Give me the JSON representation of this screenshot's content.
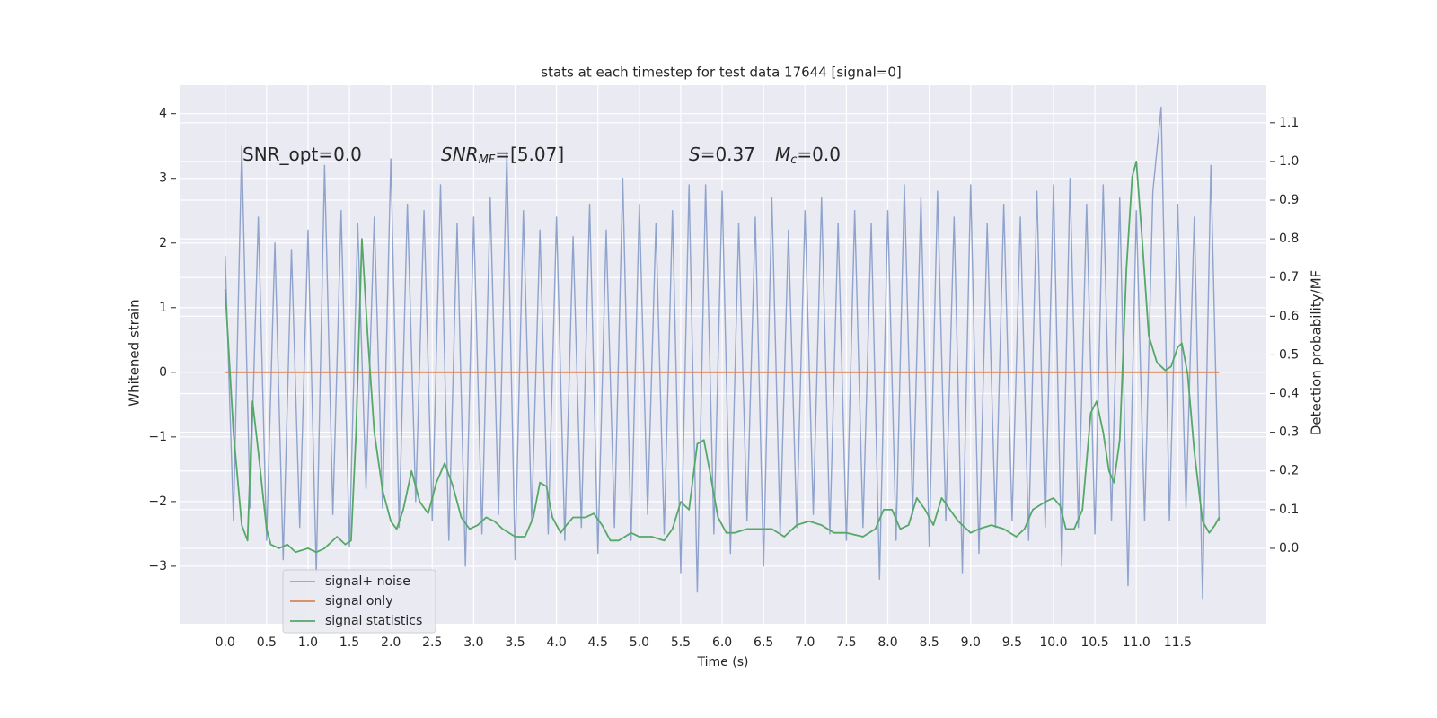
{
  "chart_data": {
    "type": "line",
    "title": "stats at each timestep for test data 17644 [signal=0]",
    "xlabel": "Time (s)",
    "ylabel": "Whitened strain",
    "y2label": "Detection probability/MF",
    "xlim": [
      -0.55,
      12.57
    ],
    "ylim": [
      -3.89,
      4.44
    ],
    "y2lim": [
      -0.195,
      1.197
    ],
    "xticks": [
      {
        "value": 0,
        "label": "0.0"
      },
      0.5,
      {
        "value": 1,
        "label": "1.0"
      },
      1.5,
      {
        "value": 2,
        "label": "2.0"
      },
      2.5,
      {
        "value": 3,
        "label": "3.0"
      },
      3.5,
      {
        "value": 4,
        "label": "4.0"
      },
      4.5,
      {
        "value": 5,
        "label": "5.0"
      },
      5.5,
      {
        "value": 6,
        "label": "6.0"
      },
      6.5,
      {
        "value": 7,
        "label": "7.0"
      },
      7.5,
      {
        "value": 8,
        "label": "8.0"
      },
      8.5,
      {
        "value": 9,
        "label": "9.0"
      },
      9.5,
      {
        "value": 10,
        "label": "10.0"
      },
      10.5,
      {
        "value": 11,
        "label": "11.0"
      },
      11.5
    ],
    "yticks": [
      {
        "value": -3,
        "label": "−3"
      },
      {
        "value": -2,
        "label": "−2"
      },
      {
        "value": -1,
        "label": "−1"
      },
      0,
      1,
      2,
      3,
      4
    ],
    "y2ticks": [
      {
        "value": 0,
        "label": "0.0"
      },
      0.1,
      0.2,
      0.3,
      0.4,
      0.5,
      0.6,
      0.7,
      0.8,
      0.9,
      {
        "value": 1,
        "label": "1.0"
      },
      1.1
    ],
    "grid": true,
    "legend_loc": "lower left",
    "annotations": [
      [
        {
          "text": "SNR_opt=0.0"
        }
      ],
      [
        {
          "text": "SNR",
          "italic": true
        },
        {
          "text": "MF",
          "italic": true,
          "subscript": true
        },
        {
          "text": "=[5.07]"
        }
      ],
      [
        {
          "text": "S",
          "italic": true
        },
        {
          "text": "=0.37"
        },
        {
          "text": "M",
          "italic": true,
          "spaced": true
        },
        {
          "text": "c",
          "italic": true,
          "subscript": true
        },
        {
          "text": "=0.0"
        }
      ]
    ],
    "series": [
      {
        "name": "signal+ noise",
        "color": "#8fa3cc",
        "x": [
          0,
          0.1,
          0.2,
          0.3,
          0.4,
          0.5,
          0.6,
          0.7,
          0.8,
          0.9,
          1,
          1.1,
          1.2,
          1.3,
          1.4,
          1.5,
          1.6,
          1.7,
          1.8,
          1.9,
          2,
          2.1,
          2.2,
          2.3,
          2.4,
          2.5,
          2.6,
          2.7,
          2.8,
          2.9,
          3,
          3.1,
          3.2,
          3.3,
          3.4,
          3.5,
          3.6,
          3.7,
          3.8,
          3.9,
          4,
          4.1,
          4.2,
          4.3,
          4.4,
          4.5,
          4.6,
          4.7,
          4.8,
          4.9,
          5,
          5.1,
          5.2,
          5.3,
          5.4,
          5.5,
          5.6,
          5.7,
          5.8,
          5.9,
          6,
          6.1,
          6.2,
          6.3,
          6.4,
          6.5,
          6.6,
          6.7,
          6.8,
          6.9,
          7,
          7.1,
          7.2,
          7.3,
          7.4,
          7.5,
          7.6,
          7.7,
          7.8,
          7.9,
          8,
          8.1,
          8.2,
          8.3,
          8.4,
          8.5,
          8.6,
          8.7,
          8.8,
          8.9,
          9,
          9.1,
          9.2,
          9.3,
          9.4,
          9.5,
          9.6,
          9.7,
          9.8,
          9.9,
          10,
          10.1,
          10.2,
          10.3,
          10.4,
          10.5,
          10.6,
          10.7,
          10.8,
          10.9,
          11,
          11.1,
          11.2,
          11.3,
          11.4,
          11.5,
          11.6,
          11.7,
          11.8,
          11.9,
          12
        ],
        "values": [
          1.8,
          -2.3,
          3.5,
          -2.1,
          2.4,
          -2.6,
          2.0,
          -2.9,
          1.9,
          -2.4,
          2.2,
          -3.1,
          3.2,
          -2.2,
          2.5,
          -2.7,
          2.3,
          -1.8,
          2.4,
          -2.1,
          3.3,
          -2.4,
          2.6,
          -2.0,
          2.5,
          -2.3,
          2.9,
          -2.6,
          2.3,
          -3.0,
          2.4,
          -2.5,
          2.7,
          -2.2,
          3.4,
          -2.9,
          2.5,
          -2.3,
          2.2,
          -2.5,
          2.4,
          -2.6,
          2.1,
          -2.4,
          2.6,
          -2.8,
          2.2,
          -2.4,
          3.0,
          -2.6,
          2.6,
          -2.2,
          2.3,
          -2.5,
          2.5,
          -3.1,
          2.9,
          -3.4,
          2.9,
          -2.5,
          2.8,
          -2.8,
          2.3,
          -2.3,
          2.4,
          -3.0,
          2.7,
          -2.5,
          2.2,
          -2.4,
          2.5,
          -2.2,
          2.7,
          -2.5,
          2.3,
          -2.6,
          2.5,
          -2.4,
          2.3,
          -3.2,
          2.5,
          -2.6,
          2.9,
          -2.2,
          2.7,
          -2.7,
          2.8,
          -2.3,
          2.4,
          -3.1,
          2.9,
          -2.8,
          2.3,
          -2.4,
          2.6,
          -2.3,
          2.4,
          -2.6,
          2.8,
          -2.4,
          2.9,
          -3.0,
          3.0,
          -2.4,
          2.6,
          -2.5,
          2.9,
          -2.3,
          2.7,
          -3.3,
          2.5,
          -2.3,
          2.8,
          4.1,
          -2.3,
          2.6,
          -2.1,
          2.4,
          -3.5,
          3.2,
          -2.3
        ]
      },
      {
        "name": "signal only",
        "color": "#dd8452",
        "x": [
          0,
          12
        ],
        "values": [
          0,
          0
        ]
      },
      {
        "name": "signal statistics",
        "color": "#55a868",
        "axis": "y2",
        "x": [
          0,
          0.1,
          0.2,
          0.27,
          0.33,
          0.4,
          0.5,
          0.55,
          0.65,
          0.75,
          0.85,
          1,
          1.1,
          1.2,
          1.35,
          1.45,
          1.52,
          1.58,
          1.65,
          1.72,
          1.8,
          1.9,
          2,
          2.07,
          2.15,
          2.25,
          2.35,
          2.45,
          2.55,
          2.65,
          2.75,
          2.85,
          2.95,
          3.05,
          3.15,
          3.25,
          3.35,
          3.5,
          3.62,
          3.72,
          3.8,
          3.88,
          3.95,
          4.05,
          4.12,
          4.2,
          4.35,
          4.45,
          4.55,
          4.65,
          4.75,
          4.9,
          5,
          5.15,
          5.3,
          5.4,
          5.5,
          5.6,
          5.7,
          5.78,
          5.85,
          5.95,
          6.05,
          6.15,
          6.3,
          6.45,
          6.6,
          6.75,
          6.9,
          7.05,
          7.2,
          7.35,
          7.5,
          7.7,
          7.85,
          7.95,
          8.05,
          8.15,
          8.25,
          8.35,
          8.45,
          8.55,
          8.65,
          8.75,
          8.85,
          9,
          9.1,
          9.25,
          9.4,
          9.55,
          9.65,
          9.75,
          9.9,
          10,
          10.08,
          10.15,
          10.25,
          10.35,
          10.45,
          10.52,
          10.6,
          10.67,
          10.73,
          10.8,
          10.88,
          10.95,
          11,
          11.07,
          11.15,
          11.25,
          11.35,
          11.42,
          11.5,
          11.55,
          11.62,
          11.7,
          11.8,
          11.88,
          11.95,
          12
        ],
        "values": [
          0.67,
          0.3,
          0.06,
          0.02,
          0.38,
          0.25,
          0.05,
          0.01,
          0.0,
          0.01,
          -0.01,
          0.0,
          -0.01,
          0.0,
          0.03,
          0.01,
          0.02,
          0.3,
          0.8,
          0.55,
          0.3,
          0.15,
          0.07,
          0.05,
          0.1,
          0.2,
          0.12,
          0.09,
          0.17,
          0.22,
          0.16,
          0.08,
          0.05,
          0.06,
          0.08,
          0.07,
          0.05,
          0.03,
          0.03,
          0.08,
          0.17,
          0.16,
          0.08,
          0.04,
          0.06,
          0.08,
          0.08,
          0.09,
          0.06,
          0.02,
          0.02,
          0.04,
          0.03,
          0.03,
          0.02,
          0.05,
          0.12,
          0.1,
          0.27,
          0.28,
          0.2,
          0.08,
          0.04,
          0.04,
          0.05,
          0.05,
          0.05,
          0.03,
          0.06,
          0.07,
          0.06,
          0.04,
          0.04,
          0.03,
          0.05,
          0.1,
          0.1,
          0.05,
          0.06,
          0.13,
          0.1,
          0.06,
          0.13,
          0.1,
          0.07,
          0.04,
          0.05,
          0.06,
          0.05,
          0.03,
          0.05,
          0.1,
          0.12,
          0.13,
          0.11,
          0.05,
          0.05,
          0.1,
          0.35,
          0.38,
          0.3,
          0.2,
          0.17,
          0.28,
          0.72,
          0.96,
          1.0,
          0.8,
          0.55,
          0.48,
          0.46,
          0.47,
          0.52,
          0.53,
          0.45,
          0.25,
          0.07,
          0.04,
          0.06,
          0.08
        ]
      }
    ]
  }
}
